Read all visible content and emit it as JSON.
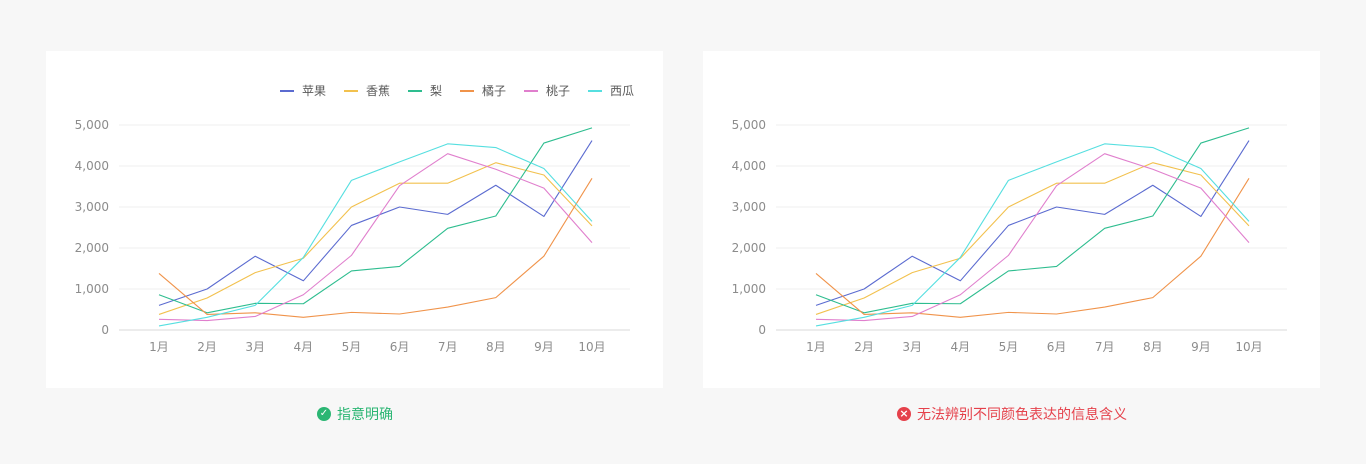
{
  "captions": {
    "good": {
      "text": "指意明确",
      "color": "#2bb673",
      "icon": "check-circle-icon"
    },
    "bad": {
      "text": "无法辨别不同颜色表达的信息含义",
      "color": "#e5414b",
      "icon": "close-circle-icon"
    }
  },
  "chart_data": [
    {
      "type": "line",
      "legend_position": "top-right",
      "legend_visible": true,
      "grid": true,
      "categories": [
        "1月",
        "2月",
        "3月",
        "4月",
        "5月",
        "6月",
        "7月",
        "8月",
        "9月",
        "10月"
      ],
      "ylim": [
        0,
        5000
      ],
      "yticks": [
        "0",
        "1,000",
        "2,000",
        "3,000",
        "4,000",
        "5,000"
      ],
      "series": [
        {
          "name": "苹果",
          "color": "#5b6bd0",
          "values": [
            600,
            1000,
            1800,
            1200,
            2550,
            3000,
            2820,
            3530,
            2770,
            4620
          ]
        },
        {
          "name": "香蕉",
          "color": "#f2c14e",
          "values": [
            380,
            780,
            1400,
            1750,
            3000,
            3580,
            3580,
            4080,
            3780,
            2540
          ]
        },
        {
          "name": "梨",
          "color": "#2ebd8f",
          "values": [
            860,
            420,
            650,
            640,
            1440,
            1550,
            2480,
            2780,
            4560,
            4930
          ]
        },
        {
          "name": "橘子",
          "color": "#f0934a",
          "values": [
            1380,
            380,
            420,
            310,
            430,
            390,
            560,
            790,
            1800,
            3700
          ]
        },
        {
          "name": "桃子",
          "color": "#e07fcd",
          "values": [
            260,
            230,
            330,
            860,
            1820,
            3520,
            4300,
            3920,
            3460,
            2130
          ]
        },
        {
          "name": "西瓜",
          "color": "#56dfe0",
          "values": [
            100,
            310,
            600,
            1770,
            3650,
            4100,
            4540,
            4450,
            3940,
            2650
          ]
        }
      ]
    },
    {
      "type": "line",
      "legend_visible": false,
      "grid": true,
      "categories": [
        "1月",
        "2月",
        "3月",
        "4月",
        "5月",
        "6月",
        "7月",
        "8月",
        "9月",
        "10月"
      ],
      "ylim": [
        0,
        5000
      ],
      "yticks": [
        "0",
        "1,000",
        "2,000",
        "3,000",
        "4,000",
        "5,000"
      ],
      "series": [
        {
          "color": "#5b6bd0",
          "values": [
            600,
            1000,
            1800,
            1200,
            2550,
            3000,
            2820,
            3530,
            2770,
            4620
          ]
        },
        {
          "color": "#f2c14e",
          "values": [
            380,
            780,
            1400,
            1750,
            3000,
            3580,
            3580,
            4080,
            3780,
            2540
          ]
        },
        {
          "color": "#2ebd8f",
          "values": [
            860,
            420,
            650,
            640,
            1440,
            1550,
            2480,
            2780,
            4560,
            4930
          ]
        },
        {
          "color": "#f0934a",
          "values": [
            1380,
            380,
            420,
            310,
            430,
            390,
            560,
            790,
            1800,
            3700
          ]
        },
        {
          "color": "#e07fcd",
          "values": [
            260,
            230,
            330,
            860,
            1820,
            3520,
            4300,
            3920,
            3460,
            2130
          ]
        },
        {
          "color": "#56dfe0",
          "values": [
            100,
            310,
            600,
            1770,
            3650,
            4100,
            4540,
            4450,
            3940,
            2650
          ]
        }
      ]
    }
  ]
}
